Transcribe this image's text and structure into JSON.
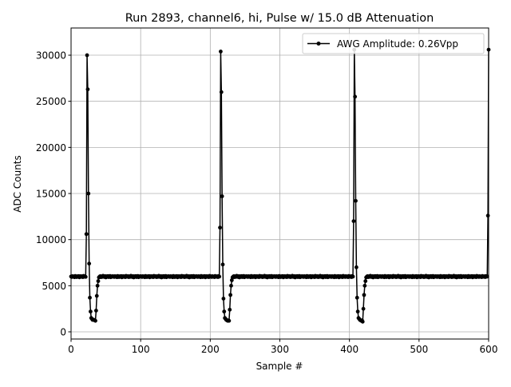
{
  "chart_data": {
    "type": "line",
    "title": "Run 2893, channel6, hi, Pulse w/ 15.0 dB Attenuation",
    "xlabel": "Sample #",
    "ylabel": "ADC Counts",
    "xlim": [
      0,
      600
    ],
    "ylim": [
      -780,
      32950
    ],
    "xticks": [
      0,
      100,
      200,
      300,
      400,
      500,
      600
    ],
    "yticks": [
      0,
      5000,
      10000,
      15000,
      20000,
      25000,
      30000
    ],
    "grid": true,
    "legend_position": "top-right",
    "series": [
      {
        "name": "AWG Amplitude: 0.26Vpp",
        "color": "#000000",
        "marker": "circle",
        "x_start": 0,
        "x_step": 1,
        "values": [
          6000,
          5950,
          6030,
          5980,
          6010,
          5920,
          6060,
          5990,
          5940,
          6020,
          5970,
          6050,
          5910,
          6000,
          6040,
          5960,
          6010,
          5930,
          6070,
          5990,
          6000,
          5960,
          10600,
          30000,
          26300,
          15000,
          7400,
          3700,
          2200,
          1500,
          1400,
          1300,
          1300,
          1300,
          1250,
          1200,
          2300,
          3900,
          5000,
          5500,
          5900,
          5980,
          6040,
          5930,
          6010,
          5960,
          6080,
          5990,
          5950,
          6030,
          5900,
          6020,
          5970,
          6050,
          5940,
          6000,
          6060,
          5920,
          6010,
          5980,
          6030,
          6000,
          5950,
          6030,
          5980,
          6010,
          5920,
          6060,
          5990,
          5940,
          6020,
          5970,
          6050,
          5910,
          6000,
          6040,
          5960,
          6010,
          5930,
          6070,
          5990,
          5980,
          6040,
          5930,
          6010,
          5960,
          6080,
          5990,
          5950,
          6030,
          5900,
          6020,
          5970,
          6050,
          5940,
          6000,
          6060,
          5920,
          6010,
          5980,
          6030,
          6000,
          5950,
          6030,
          5980,
          6010,
          5920,
          6060,
          5990,
          5940,
          6020,
          5970,
          6050,
          5910,
          6000,
          6040,
          5960,
          6010,
          5930,
          6070,
          5990,
          5980,
          6040,
          5930,
          6010,
          5960,
          6080,
          5990,
          5950,
          6030,
          5900,
          6020,
          5970,
          6050,
          5940,
          6000,
          6060,
          5920,
          6010,
          5980,
          6030,
          6000,
          5950,
          6030,
          5980,
          6010,
          5920,
          6060,
          5990,
          5940,
          6020,
          5970,
          6050,
          5910,
          6000,
          6040,
          5960,
          6010,
          5930,
          6070,
          5990,
          5980,
          6040,
          5930,
          6010,
          5960,
          6080,
          5990,
          5950,
          6030,
          5900,
          6020,
          5970,
          6050,
          5940,
          6000,
          6060,
          5920,
          6010,
          5980,
          6030,
          6000,
          5950,
          6030,
          5980,
          6010,
          5920,
          6060,
          5990,
          5940,
          6020,
          5970,
          6050,
          5910,
          6000,
          6040,
          5960,
          6010,
          5930,
          6070,
          5990,
          6010,
          5950,
          6040,
          5980,
          6000,
          5930,
          6060,
          5990,
          5970,
          6020,
          5940,
          6050,
          5990,
          11300,
          30400,
          26000,
          14700,
          7300,
          3600,
          2200,
          1500,
          1400,
          1300,
          1250,
          1200,
          1250,
          1200,
          2400,
          4000,
          5000,
          5600,
          5900,
          5980,
          6040,
          5930,
          6010,
          5960,
          6080,
          5990,
          5950,
          6030,
          5900,
          6020,
          5970,
          6050,
          5940,
          6000,
          6060,
          5920,
          6010,
          5980,
          6030,
          6000,
          5950,
          6030,
          5980,
          6010,
          5920,
          6060,
          5990,
          5940,
          6020,
          5970,
          6050,
          5910,
          6000,
          6040,
          5960,
          6010,
          5930,
          6070,
          5990,
          5980,
          6040,
          5930,
          6010,
          5960,
          6080,
          5990,
          5950,
          6030,
          5900,
          6020,
          5970,
          6050,
          5940,
          6000,
          6060,
          5920,
          6010,
          5980,
          6030,
          6000,
          5950,
          6030,
          5980,
          6010,
          5920,
          6060,
          5990,
          5940,
          6020,
          5970,
          6050,
          5910,
          6000,
          6040,
          5960,
          6010,
          5930,
          6070,
          5990,
          5980,
          6040,
          5930,
          6010,
          5960,
          6080,
          5990,
          5950,
          6030,
          5900,
          6020,
          5970,
          6050,
          5940,
          6000,
          6060,
          5920,
          6010,
          5980,
          6030,
          6000,
          5950,
          6030,
          5980,
          6010,
          5920,
          6060,
          5990,
          5940,
          6020,
          5970,
          6050,
          5910,
          6000,
          6040,
          5960,
          6010,
          5930,
          6070,
          5990,
          5980,
          6040,
          5930,
          6010,
          5960,
          6080,
          5990,
          5950,
          6030,
          5900,
          6020,
          5970,
          6050,
          5940,
          6000,
          6060,
          5920,
          6010,
          5980,
          6030,
          6000,
          5950,
          6030,
          5980,
          6010,
          5920,
          6060,
          5990,
          5940,
          6020,
          5970,
          6050,
          5910,
          6000,
          6040,
          5960,
          6010,
          5930,
          6070,
          5990,
          6010,
          5950,
          6040,
          5980,
          6000,
          5930,
          6060,
          5990,
          5970,
          6020,
          5940,
          6050,
          5990,
          12000,
          30600,
          25500,
          14200,
          7000,
          3700,
          2200,
          1500,
          1400,
          1300,
          1250,
          1200,
          1250,
          1100,
          2500,
          4000,
          5000,
          5500,
          5900,
          5980,
          6040,
          5930,
          6010,
          5960,
          6080,
          5990,
          5950,
          6030,
          5900,
          6020,
          5970,
          6050,
          5940,
          6000,
          6060,
          5920,
          6010,
          5980,
          6030,
          6000,
          5950,
          6030,
          5980,
          6010,
          5920,
          6060,
          5990,
          5940,
          6020,
          5970,
          6050,
          5910,
          6000,
          6040,
          5960,
          6010,
          5930,
          6070,
          5990,
          5980,
          6040,
          5930,
          6010,
          5960,
          6080,
          5990,
          5950,
          6030,
          5900,
          6020,
          5970,
          6050,
          5940,
          6000,
          6060,
          5920,
          6010,
          5980,
          6030,
          6000,
          5950,
          6030,
          5980,
          6010,
          5920,
          6060,
          5990,
          5940,
          6020,
          5970,
          6050,
          5910,
          6000,
          6040,
          5960,
          6010,
          5930,
          6070,
          5990,
          5980,
          6040,
          5930,
          6010,
          5960,
          6080,
          5990,
          5950,
          6030,
          5900,
          6020,
          5970,
          6050,
          5940,
          6000,
          6060,
          5920,
          6010,
          5980,
          6030,
          6000,
          5950,
          6030,
          5980,
          6010,
          5920,
          6060,
          5990,
          5940,
          6020,
          5970,
          6050,
          5910,
          6000,
          6040,
          5960,
          6010,
          5930,
          6070,
          5990,
          5980,
          6040,
          5930,
          6010,
          5960,
          6080,
          5990,
          5950,
          6030,
          5900,
          6020,
          5970,
          6050,
          5940,
          6000,
          6060,
          5920,
          6010,
          5980,
          6030,
          6000,
          5950,
          6030,
          5980,
          6010,
          5920,
          6060,
          5990,
          5940,
          6020,
          5970,
          6050,
          5910,
          6000,
          6040,
          5960,
          6010,
          5930,
          6070,
          5990,
          6010,
          5950,
          6040,
          5980,
          6000,
          5930,
          6060,
          5990,
          5970,
          6020,
          5940,
          6050,
          5990,
          6000,
          12600,
          30600
        ]
      }
    ]
  }
}
